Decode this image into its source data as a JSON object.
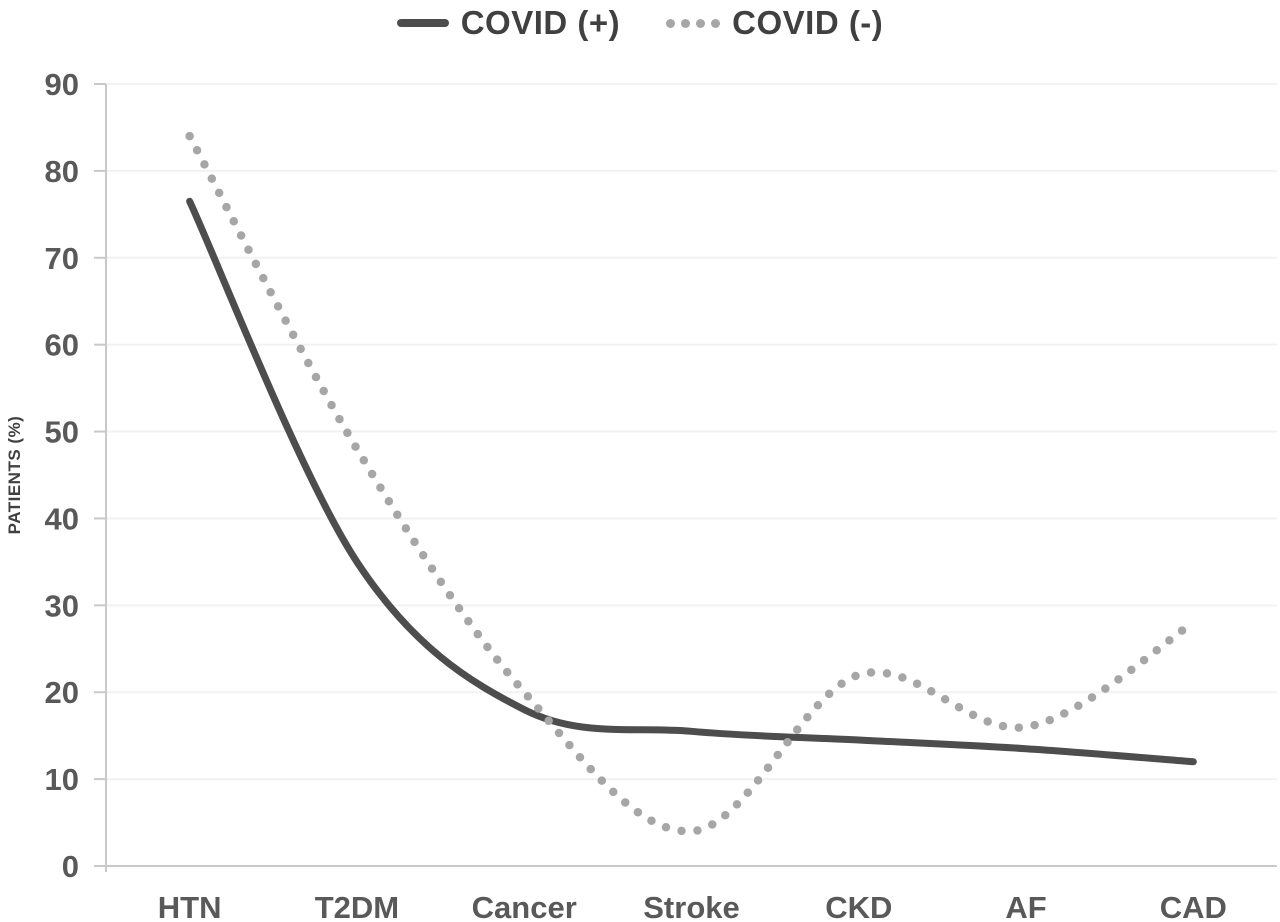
{
  "colors": {
    "background": "#ffffff",
    "axis": "#c9c9c9",
    "gridline": "#f2f2f2",
    "tick_label": "#595959",
    "legend_text": "#404040",
    "covid_positive": "#4d4d4d",
    "covid_negative": "#a6a6a6"
  },
  "legend": {
    "position": "top",
    "items": [
      {
        "label": "COVID (+)",
        "swatch": "solid-line-swatch"
      },
      {
        "label": "COVID (-)",
        "swatch": "dotted-line-swatch"
      }
    ]
  },
  "chart_data": {
    "type": "line",
    "title": "",
    "xlabel": "",
    "ylabel": "PATIENTS (%)",
    "categories": [
      "HTN",
      "T2DM",
      "Cancer",
      "Stroke",
      "CKD",
      "AF",
      "CAD"
    ],
    "series": [
      {
        "name": "COVID (+)",
        "style": "solid",
        "color": "#4d4d4d",
        "values": [
          76.5,
          35,
          18,
          15.5,
          14.5,
          13.5,
          12
        ]
      },
      {
        "name": "COVID (-)",
        "style": "dotted",
        "color": "#a6a6a6",
        "values": [
          84,
          48,
          20,
          4,
          22,
          16,
          28
        ]
      }
    ],
    "ylim": [
      0,
      90
    ],
    "yticks": [
      0,
      10,
      20,
      30,
      40,
      50,
      60,
      70,
      80,
      90
    ],
    "grid": true,
    "line_smoothing": true,
    "legend_position": "top center"
  }
}
